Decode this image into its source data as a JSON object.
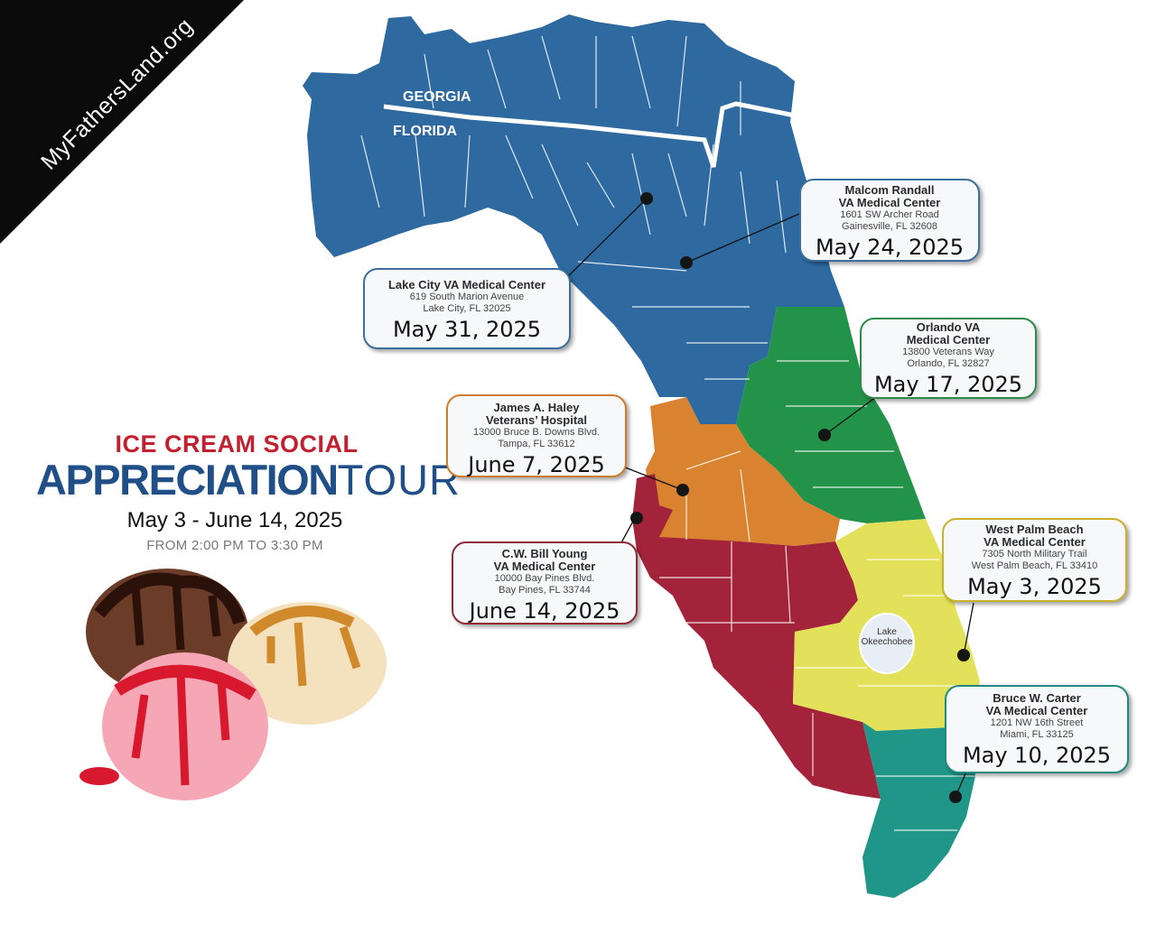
{
  "banner": {
    "text": "MyFathersLand.org"
  },
  "header": {
    "title_top": "ICE CREAM SOCIAL",
    "title_main_bold": "APPRECIATION",
    "title_main_light": "TOUR",
    "date_range": "May 3 - June 14, 2025",
    "time_range": "FROM 2:00 PM TO 3:30 PM"
  },
  "map": {
    "labels": {
      "georgia": "GEORGIA",
      "florida": "FLORIDA",
      "lake_line1": "Lake",
      "lake_line2": "Okeechobee"
    },
    "colors": {
      "north": "#2e6aa0",
      "central_east": "#23934a",
      "tampa": "#d9822f",
      "southwest": "#a3233a",
      "southeast": "#e3e15a",
      "miami": "#1f9688",
      "county_line": "#ffffff",
      "border": "#ffffff",
      "lake": "#e8eef6"
    }
  },
  "locations": [
    {
      "id": "gainesville",
      "name1": "Malcom Randall",
      "name2": "VA Medical Center",
      "addr1": "1601 SW Archer Road",
      "addr2": "Gainesville, FL 32608",
      "date": "May 24, 2025",
      "border": "#3b6f9f"
    },
    {
      "id": "lakecity",
      "name1": "Lake City VA Medical Center",
      "name2": "",
      "addr1": "619 South Marion Avenue",
      "addr2": "Lake City, FL 32025",
      "date": "May 31, 2025",
      "border": "#3b6f9f"
    },
    {
      "id": "orlando",
      "name1": "Orlando VA",
      "name2": "Medical Center",
      "addr1": "13800 Veterans Way",
      "addr2": "Orlando, FL 32827",
      "date": "May 17, 2025",
      "border": "#2e8a4a"
    },
    {
      "id": "tampa",
      "name1": "James A. Haley",
      "name2": "Veterans’ Hospital",
      "addr1": "13000 Bruce B. Downs Blvd.",
      "addr2": "Tampa, FL 33612",
      "date": "June 7, 2025",
      "border": "#cf7c2c"
    },
    {
      "id": "baypines",
      "name1": "C.W. Bill Young",
      "name2": "VA Medical Center",
      "addr1": "10000 Bay Pines Blvd.",
      "addr2": "Bay Pines, FL 33744",
      "date": "June 14, 2025",
      "border": "#8e2a36"
    },
    {
      "id": "westpalm",
      "name1": "West Palm Beach",
      "name2": "VA Medical Center",
      "addr1": "7305 North Military Trail",
      "addr2": "West Palm Beach, FL 33410",
      "date": "May 3, 2025",
      "border": "#c9b22a"
    },
    {
      "id": "miami",
      "name1": "Bruce W. Carter",
      "name2": "VA Medical Center",
      "addr1": "1201 NW 16th Street",
      "addr2": "Miami, FL 33125",
      "date": "May 10, 2025",
      "border": "#1f8a80"
    }
  ]
}
